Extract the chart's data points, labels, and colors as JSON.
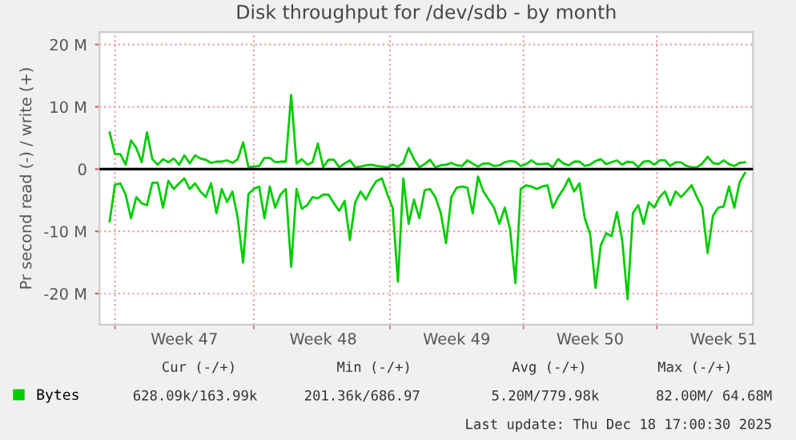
{
  "chart_data": {
    "type": "line",
    "title": "Disk throughput for /dev/sdb - by month",
    "ylabel": "Pr second read (-) / write (+)",
    "ylim": [
      -25,
      22
    ],
    "yticks": [
      {
        "value": -20,
        "label": "-20 M"
      },
      {
        "value": -10,
        "label": "-10 M"
      },
      0,
      {
        "value": 10,
        "label": "10 M"
      },
      {
        "value": 20,
        "label": "20 M"
      }
    ],
    "categories": [
      null,
      null,
      null,
      null,
      null,
      null,
      null,
      null,
      null,
      null,
      null,
      null,
      null,
      null,
      "Week 47",
      null,
      null,
      null,
      null,
      null,
      null,
      null,
      null,
      null,
      null,
      null,
      null,
      null,
      null,
      null,
      null,
      null,
      null,
      null,
      null,
      null,
      null,
      null,
      null,
      null,
      "Week 48",
      null,
      null,
      null,
      null,
      null,
      null,
      null,
      null,
      null,
      null,
      null,
      null,
      null,
      null,
      null,
      null,
      null,
      null,
      null,
      null,
      null,
      null,
      null,
      null,
      "Week 49",
      null,
      null,
      null,
      null,
      null,
      null,
      null,
      null,
      null,
      null,
      null,
      null,
      null,
      null,
      null,
      null,
      null,
      null,
      null,
      null,
      null,
      null,
      null,
      null,
      "Week 50",
      null,
      null,
      null,
      null,
      null,
      null,
      null,
      null,
      null,
      null,
      null,
      null,
      null,
      null,
      null,
      null,
      null,
      null,
      null,
      null,
      null,
      null,
      null,
      null,
      "Week 51",
      null,
      null,
      null,
      null
    ],
    "grid": true,
    "legend": "bottom",
    "ref_lines": [
      {
        "axis": "y",
        "value": 0,
        "label": null,
        "color": "#000000"
      }
    ],
    "series": [
      {
        "name": "Bytes",
        "color": "#00cc00",
        "values": [
          -8.4,
          -2.5,
          -2.3,
          -4.1,
          -7.9,
          -4.5,
          -5.5,
          -5.8,
          -2.2,
          -2.2,
          -6.2,
          -1.9,
          -3.2,
          -2.3,
          -1.5,
          -3.2,
          -2.3,
          -3.6,
          -4.5,
          -2.3,
          -7.1,
          -3.2,
          -5.3,
          -3.6,
          -7.9,
          -15.0,
          -4.0,
          -3.2,
          -2.8,
          -7.9,
          -2.8,
          -6.2,
          -4.1,
          -3.2,
          -15.7,
          -3.2,
          -6.4,
          -5.8,
          -4.5,
          -4.7,
          -4.1,
          -4.1,
          -5.5,
          -6.7,
          -5.1,
          -11.4,
          -5.3,
          -3.6,
          -4.9,
          -3.2,
          -1.9,
          -1.5,
          -4.0,
          -6.2,
          -18.1,
          -1.5,
          -8.8,
          -4.9,
          -7.9,
          -3.4,
          -3.2,
          -4.5,
          -7.0,
          -11.9,
          -4.5,
          -3.0,
          -2.8,
          -3.0,
          -7.1,
          -1.2,
          -3.6,
          -4.9,
          -6.2,
          -8.8,
          -6.2,
          -9.7,
          -18.3,
          -3.2,
          -2.6,
          -2.8,
          -3.2,
          -2.8,
          -2.6,
          -6.2,
          -4.5,
          -3.2,
          -1.5,
          -3.6,
          -2.3,
          -7.9,
          -10.5,
          -19.1,
          -12.2,
          -10.3,
          -10.8,
          -6.9,
          -11.4,
          -20.9,
          -7.1,
          -5.8,
          -8.8,
          -5.3,
          -6.2,
          -4.5,
          -3.6,
          -5.8,
          -3.6,
          -4.5,
          -3.6,
          -2.6,
          -4.5,
          -6.2,
          -13.5,
          -7.5,
          -6.2,
          -6.0,
          -2.8,
          -6.2,
          -2.1,
          -0.6
        ]
      },
      {
        "color": "#00cc00",
        "values": [
          5.9,
          2.4,
          2.4,
          0.7,
          4.6,
          3.4,
          1.1,
          5.9,
          1.6,
          0.7,
          1.6,
          1.1,
          1.7,
          0.7,
          2.2,
          0.9,
          2.2,
          1.7,
          1.5,
          1.0,
          1.2,
          1.2,
          1.4,
          1.0,
          1.6,
          4.3,
          0.3,
          0.4,
          0.5,
          1.8,
          1.8,
          1.1,
          1.2,
          1.2,
          11.9,
          0.9,
          1.6,
          0.7,
          1.1,
          4.1,
          0.3,
          1.5,
          1.5,
          0.3,
          0.9,
          1.4,
          0.3,
          0.4,
          0.6,
          0.7,
          0.5,
          0.4,
          0.3,
          0.7,
          0.4,
          1.0,
          3.4,
          1.6,
          0.3,
          0.8,
          1.5,
          0.3,
          0.6,
          0.7,
          1.0,
          0.6,
          0.5,
          1.4,
          0.9,
          0.4,
          0.9,
          0.9,
          0.5,
          0.6,
          1.1,
          1.3,
          1.2,
          0.5,
          0.8,
          1.4,
          0.8,
          0.8,
          0.9,
          0.3,
          1.6,
          0.9,
          0.6,
          1.2,
          1.2,
          0.5,
          0.7,
          1.3,
          1.6,
          0.8,
          1.1,
          1.4,
          0.7,
          1.2,
          1.1,
          0.3,
          1.2,
          1.3,
          0.7,
          1.4,
          1.4,
          0.5,
          1.1,
          1.1,
          0.5,
          0.3,
          0.3,
          0.9,
          2.0,
          1.0,
          0.8,
          1.4,
          0.8,
          0.5,
          1.0,
          1.1
        ]
      }
    ],
    "annotations": [
      "Cur (-/+)",
      "Min (-/+)",
      "Avg (-/+)",
      "Max (-/+)",
      "628.09k/163.99k",
      "201.36k/686.97",
      "5.20M/779.98k",
      "82.00M/ 64.68M",
      "Last update: Thu Dec 18 17:00:30 2025"
    ]
  }
}
